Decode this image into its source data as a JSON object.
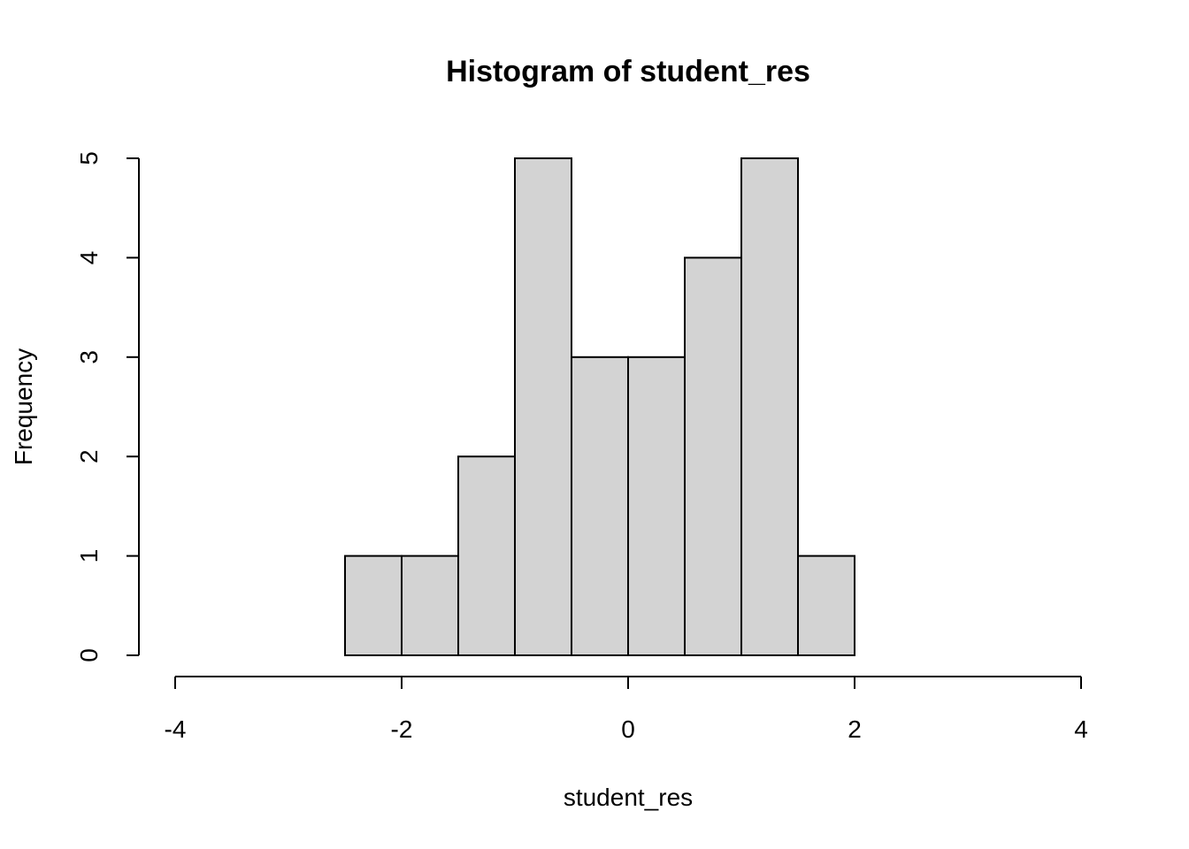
{
  "chart_data": {
    "type": "bar",
    "title": "Histogram of student_res",
    "xlabel": "student_res",
    "ylabel": "Frequency",
    "bins": [
      {
        "x0": -2.5,
        "x1": -2.0,
        "count": 1
      },
      {
        "x0": -2.0,
        "x1": -1.5,
        "count": 1
      },
      {
        "x0": -1.5,
        "x1": -1.0,
        "count": 2
      },
      {
        "x0": -1.0,
        "x1": -0.5,
        "count": 5
      },
      {
        "x0": -0.5,
        "x1": 0.0,
        "count": 3
      },
      {
        "x0": 0.0,
        "x1": 0.5,
        "count": 3
      },
      {
        "x0": 0.5,
        "x1": 1.0,
        "count": 4
      },
      {
        "x0": 1.0,
        "x1": 1.5,
        "count": 5
      },
      {
        "x0": 1.5,
        "x1": 2.0,
        "count": 1
      }
    ],
    "xlim": [
      -4,
      4
    ],
    "ylim": [
      0,
      5
    ],
    "x_ticks": [
      "-4",
      "-2",
      "0",
      "2",
      "4"
    ],
    "y_ticks": [
      "0",
      "1",
      "2",
      "3",
      "4",
      "5"
    ],
    "bar_fill": "#d3d3d3",
    "bar_stroke": "#000000",
    "grid": false,
    "legend": "none"
  }
}
